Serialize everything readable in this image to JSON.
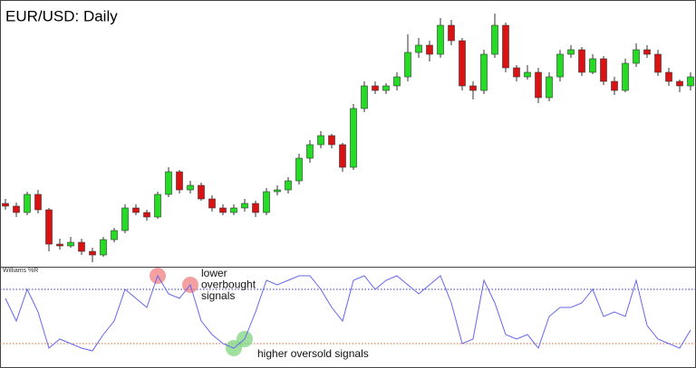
{
  "chart_data": [
    {
      "type": "candlestick",
      "title": "EUR/USD: Daily",
      "up_color": "#22dd22",
      "down_color": "#dd1111",
      "ylim": [
        0,
        300
      ],
      "open": [
        75,
        72,
        65,
        85,
        68,
        30,
        28,
        32,
        22,
        18,
        35,
        45,
        70,
        65,
        60,
        85,
        110,
        90,
        95,
        80,
        70,
        65,
        70,
        75,
        65,
        88,
        90,
        100,
        125,
        140,
        150,
        140,
        115,
        180,
        205,
        200,
        205,
        215,
        242,
        250,
        240,
        272,
        255,
        205,
        200,
        240,
        272,
        225,
        215,
        220,
        192,
        215,
        240,
        245,
        220,
        235,
        210,
        200,
        230,
        245,
        240,
        220,
        210,
        205
      ],
      "high": [
        80,
        76,
        88,
        90,
        70,
        36,
        38,
        36,
        26,
        38,
        48,
        74,
        74,
        68,
        88,
        115,
        112,
        100,
        98,
        84,
        74,
        74,
        80,
        78,
        92,
        95,
        104,
        130,
        145,
        155,
        152,
        142,
        185,
        210,
        210,
        208,
        220,
        262,
        258,
        255,
        280,
        278,
        258,
        210,
        245,
        285,
        275,
        228,
        228,
        225,
        220,
        245,
        250,
        248,
        240,
        238,
        215,
        235,
        252,
        250,
        245,
        225,
        212,
        220
      ],
      "low": [
        68,
        60,
        62,
        64,
        22,
        24,
        26,
        18,
        10,
        16,
        32,
        42,
        62,
        56,
        58,
        82,
        86,
        86,
        78,
        66,
        62,
        62,
        66,
        60,
        62,
        84,
        86,
        96,
        120,
        136,
        136,
        110,
        112,
        176,
        196,
        196,
        200,
        210,
        236,
        232,
        236,
        250,
        200,
        190,
        196,
        236,
        220,
        210,
        212,
        186,
        188,
        210,
        236,
        216,
        218,
        206,
        195,
        198,
        226,
        236,
        216,
        205,
        198,
        200
      ],
      "close": [
        72,
        65,
        85,
        68,
        30,
        28,
        32,
        22,
        18,
        35,
        45,
        70,
        65,
        60,
        85,
        110,
        90,
        95,
        80,
        70,
        65,
        70,
        75,
        65,
        88,
        90,
        100,
        125,
        140,
        150,
        140,
        115,
        180,
        205,
        200,
        205,
        215,
        242,
        250,
        240,
        272,
        255,
        205,
        200,
        240,
        272,
        225,
        215,
        220,
        192,
        215,
        240,
        245,
        220,
        235,
        210,
        200,
        230,
        245,
        240,
        220,
        210,
        205,
        215
      ]
    },
    {
      "type": "line",
      "title": "Williams %R",
      "color": "#6666ee",
      "ylim": [
        -100,
        0
      ],
      "values": [
        -30,
        -55,
        -20,
        -45,
        -85,
        -75,
        -80,
        -85,
        -88,
        -70,
        -55,
        -20,
        -30,
        -40,
        -5,
        -25,
        -30,
        -15,
        -55,
        -70,
        -80,
        -85,
        -75,
        -45,
        -10,
        -15,
        -10,
        -5,
        -5,
        -20,
        -40,
        -55,
        -10,
        -5,
        -20,
        -10,
        -5,
        -15,
        -25,
        -15,
        -5,
        -35,
        -80,
        -75,
        -10,
        -35,
        -70,
        -75,
        -70,
        -85,
        -50,
        -40,
        -40,
        -35,
        -20,
        -50,
        -45,
        -50,
        -10,
        -60,
        -75,
        -80,
        -85,
        -65
      ],
      "levels": [
        {
          "value": -20,
          "color": "#3333bb"
        },
        {
          "value": -80,
          "color": "#cc6633"
        }
      ],
      "highlights": [
        {
          "index": 14,
          "color": "#f08080"
        },
        {
          "index": 17,
          "color": "#f08080"
        },
        {
          "index": 21,
          "color": "#7fd67f"
        },
        {
          "index": 22,
          "color": "#7fd67f"
        }
      ],
      "annotations": [
        {
          "lines": [
            "lower",
            "overbought",
            "signals"
          ]
        },
        {
          "lines": [
            "higher oversold signals"
          ]
        }
      ]
    }
  ]
}
